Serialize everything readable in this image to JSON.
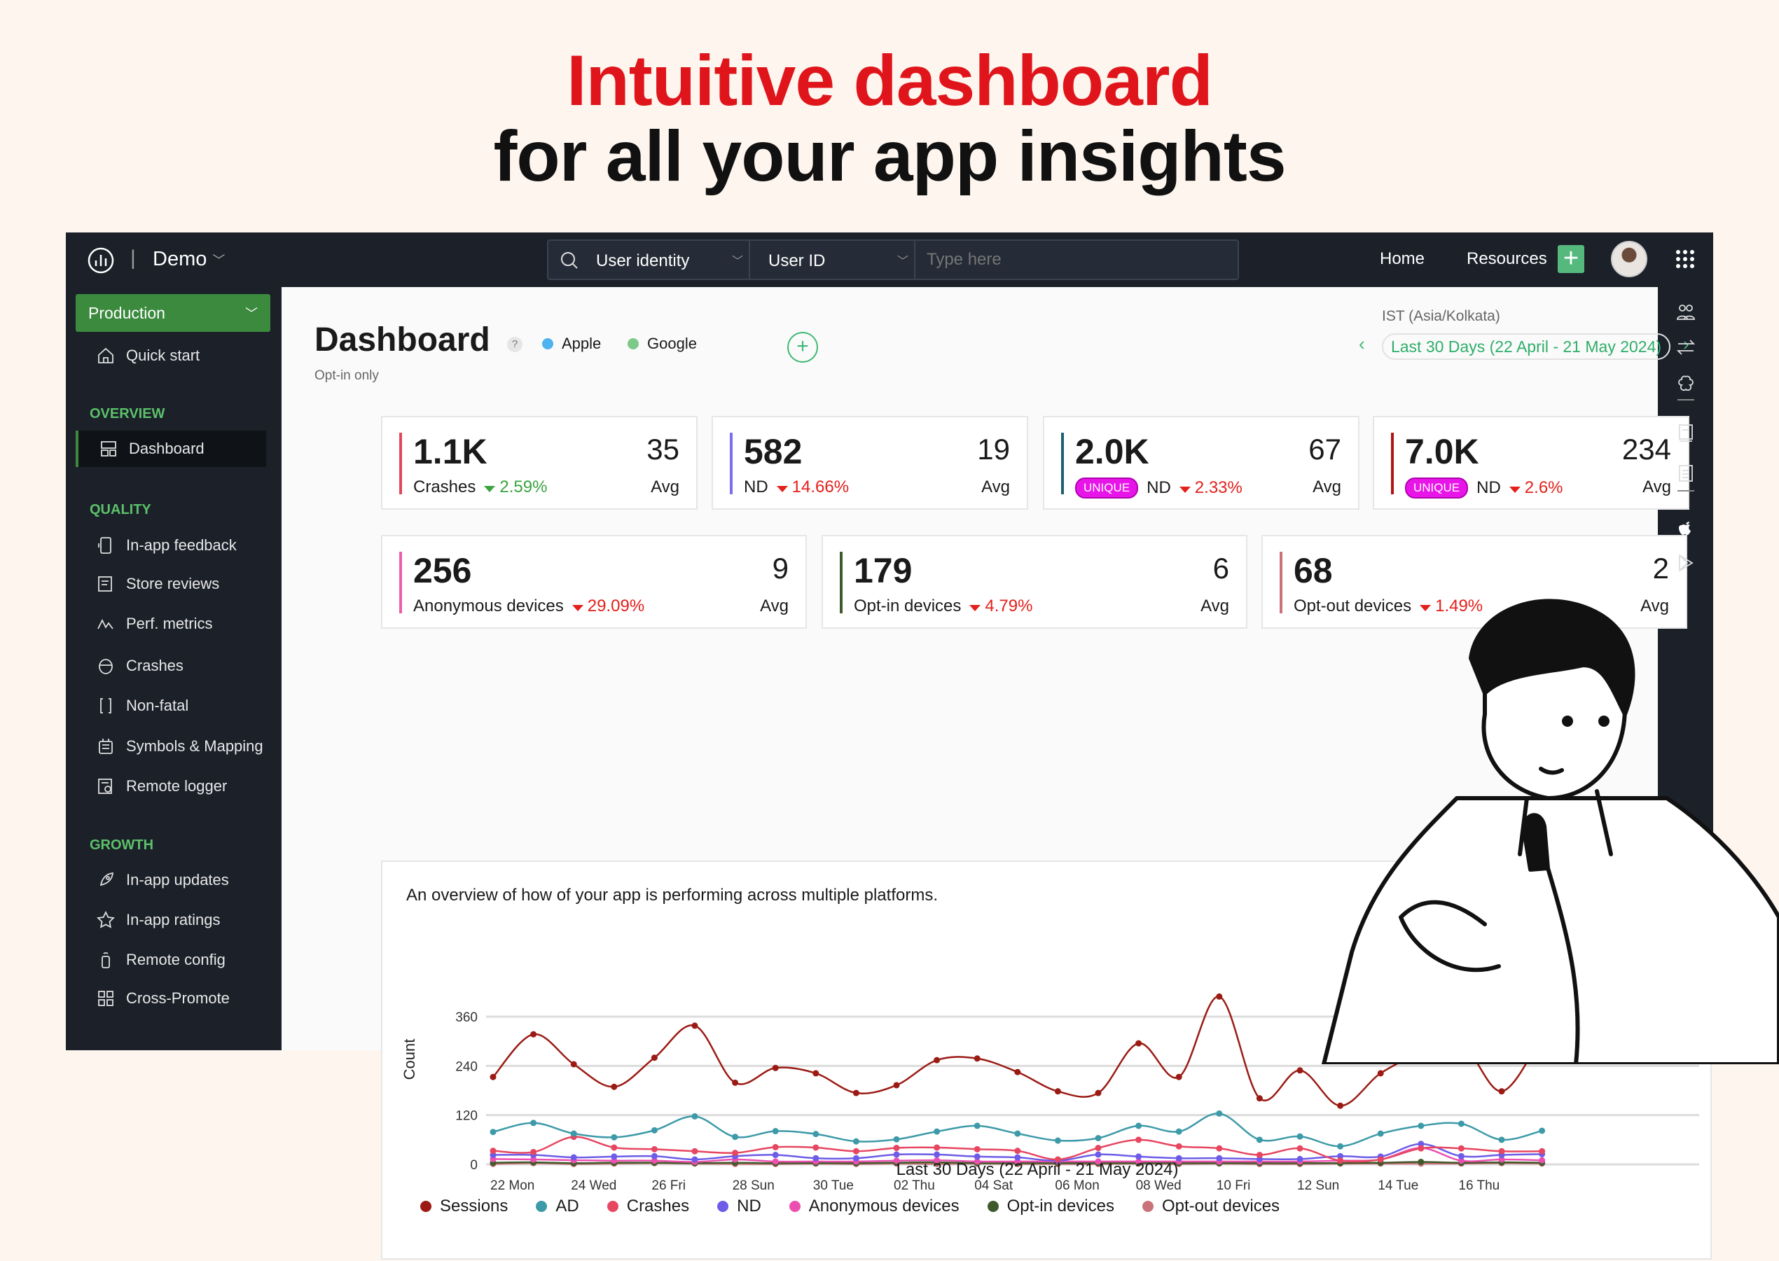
{
  "headline": {
    "line1": "Intuitive dashboard",
    "line2": "for all your app insights",
    "accent": "#e0151b"
  },
  "topbar": {
    "project": "Demo",
    "search_type": "User identity",
    "search_field": "User ID",
    "search_placeholder": "Type here",
    "links": [
      "Home",
      "Resources"
    ]
  },
  "sidebar": {
    "environment": "Production",
    "quick_start": "Quick start",
    "sections": [
      {
        "title": "OVERVIEW",
        "items": [
          "Dashboard"
        ]
      },
      {
        "title": "QUALITY",
        "items": [
          "In-app feedback",
          "Store reviews",
          "Perf. metrics",
          "Crashes",
          "Non-fatal",
          "Symbols & Mapping",
          "Remote logger"
        ]
      },
      {
        "title": "GROWTH",
        "items": [
          "In-app updates",
          "In-app ratings",
          "Remote config",
          "Cross-Promote"
        ]
      }
    ],
    "active": "Dashboard"
  },
  "dashboard": {
    "title": "Dashboard",
    "help": "?",
    "subtitle": "Opt-in only",
    "platforms": [
      "Apple",
      "Google"
    ],
    "platform_colors": [
      "#4fb3f0",
      "#7cc98a"
    ],
    "timezone": "IST (Asia/Kolkata)",
    "date_range": "Last 30 Days (22 April - 21 May 2024)"
  },
  "cards": [
    {
      "value": "1.1K",
      "avg": "35",
      "avg_label": "Avg",
      "label": "Crashes",
      "change": "2.59%",
      "trend": "down-good",
      "color": "#e0475c"
    },
    {
      "value": "582",
      "avg": "19",
      "avg_label": "Avg",
      "label": "ND",
      "change": "14.66%",
      "trend": "down",
      "color": "#7b6cf0"
    },
    {
      "value": "2.0K",
      "avg": "67",
      "avg_label": "Avg",
      "label": "ND",
      "badge": "UNIQUE",
      "change": "2.33%",
      "trend": "down",
      "color": "#1d5f6e"
    },
    {
      "value": "7.0K",
      "avg": "234",
      "avg_label": "Avg",
      "label": "ND",
      "badge": "UNIQUE",
      "change": "2.6%",
      "trend": "down",
      "color": "#b01515"
    },
    {
      "value": "256",
      "avg": "9",
      "avg_label": "Avg",
      "label": "Anonymous devices",
      "change": "29.09%",
      "trend": "down",
      "color": "#ec5fa8"
    },
    {
      "value": "179",
      "avg": "6",
      "avg_label": "Avg",
      "label": "Opt-in devices",
      "change": "4.79%",
      "trend": "down",
      "color": "#3f5a2a"
    },
    {
      "value": "68",
      "avg": "2",
      "avg_label": "Avg",
      "label": "Opt-out devices",
      "change": "1.49%",
      "trend": "down",
      "color": "#c9727a"
    }
  ],
  "chart_data": {
    "type": "line",
    "description": "An overview of how of your app is performing across multiple platforms.",
    "xlabel": "Last 30 Days (22 April - 21 May 2024)",
    "ylabel": "Count",
    "ylim": [
      0,
      360
    ],
    "yticks": [
      0,
      120,
      240,
      360
    ],
    "grid": true,
    "legend": "bottom",
    "x_tick_labels": [
      "22 Mon",
      "24 Wed",
      "26 Fri",
      "28 Sun",
      "30 Tue",
      "02 Thu",
      "04 Sat",
      "06 Mon",
      "08 Wed",
      "10 Fri",
      "12 Sun",
      "14 Tue",
      "16 Thu"
    ],
    "x": [
      "22 Apr",
      "23 Apr",
      "24 Apr",
      "25 Apr",
      "26 Apr",
      "27 Apr",
      "28 Apr",
      "29 Apr",
      "30 Apr",
      "01 May",
      "02 May",
      "03 May",
      "04 May",
      "05 May",
      "06 May",
      "07 May",
      "08 May",
      "09 May",
      "10 May",
      "11 May",
      "12 May",
      "13 May",
      "14 May",
      "15 May",
      "16 May",
      "17 May",
      "18 May"
    ],
    "series": [
      {
        "name": "Sessions",
        "color": "#9b1b14",
        "values": [
          213,
          317,
          244,
          189,
          260,
          338,
          199,
          235,
          222,
          174,
          193,
          254,
          258,
          225,
          178,
          174,
          295,
          213,
          409,
          161,
          229,
          143,
          222,
          271,
          295,
          178,
          313
        ]
      },
      {
        "name": "AD",
        "color": "#3d9aa8",
        "values": [
          79,
          101,
          75,
          66,
          83,
          117,
          67,
          81,
          74,
          56,
          61,
          80,
          94,
          75,
          58,
          64,
          94,
          80,
          124,
          60,
          68,
          44,
          75,
          94,
          99,
          60,
          82
        ]
      },
      {
        "name": "Crashes",
        "color": "#e64660",
        "values": [
          33,
          30,
          67,
          41,
          37,
          32,
          28,
          42,
          41,
          32,
          40,
          41,
          37,
          33,
          12,
          40,
          60,
          44,
          39,
          23,
          39,
          9,
          12,
          39,
          39,
          32,
          32
        ]
      },
      {
        "name": "ND",
        "color": "#6c5ce7",
        "values": [
          23,
          23,
          17,
          19,
          20,
          12,
          20,
          23,
          15,
          15,
          24,
          24,
          19,
          17,
          9,
          24,
          19,
          15,
          15,
          13,
          13,
          20,
          19,
          50,
          20,
          23,
          25
        ]
      },
      {
        "name": "Anonymous devices",
        "color": "#ec4fb0",
        "values": [
          13,
          12,
          10,
          9,
          9,
          6,
          12,
          7,
          7,
          7,
          9,
          10,
          7,
          7,
          7,
          7,
          7,
          7,
          7,
          7,
          7,
          9,
          12,
          40,
          9,
          12,
          10
        ]
      },
      {
        "name": "Opt-in devices",
        "color": "#3f5a2a",
        "values": [
          4,
          5,
          3,
          4,
          4,
          3,
          4,
          3,
          3,
          3,
          4,
          5,
          3,
          3,
          3,
          3,
          3,
          3,
          3,
          3,
          3,
          3,
          4,
          6,
          4,
          5,
          4
        ]
      },
      {
        "name": "Opt-out devices",
        "color": "#c9727a",
        "values": [
          1,
          3,
          1,
          2,
          3,
          2,
          1,
          1,
          2,
          1,
          2,
          1,
          2,
          1,
          1,
          1,
          2,
          1,
          2,
          1,
          1,
          2,
          2,
          2,
          2,
          3,
          2
        ]
      }
    ]
  }
}
